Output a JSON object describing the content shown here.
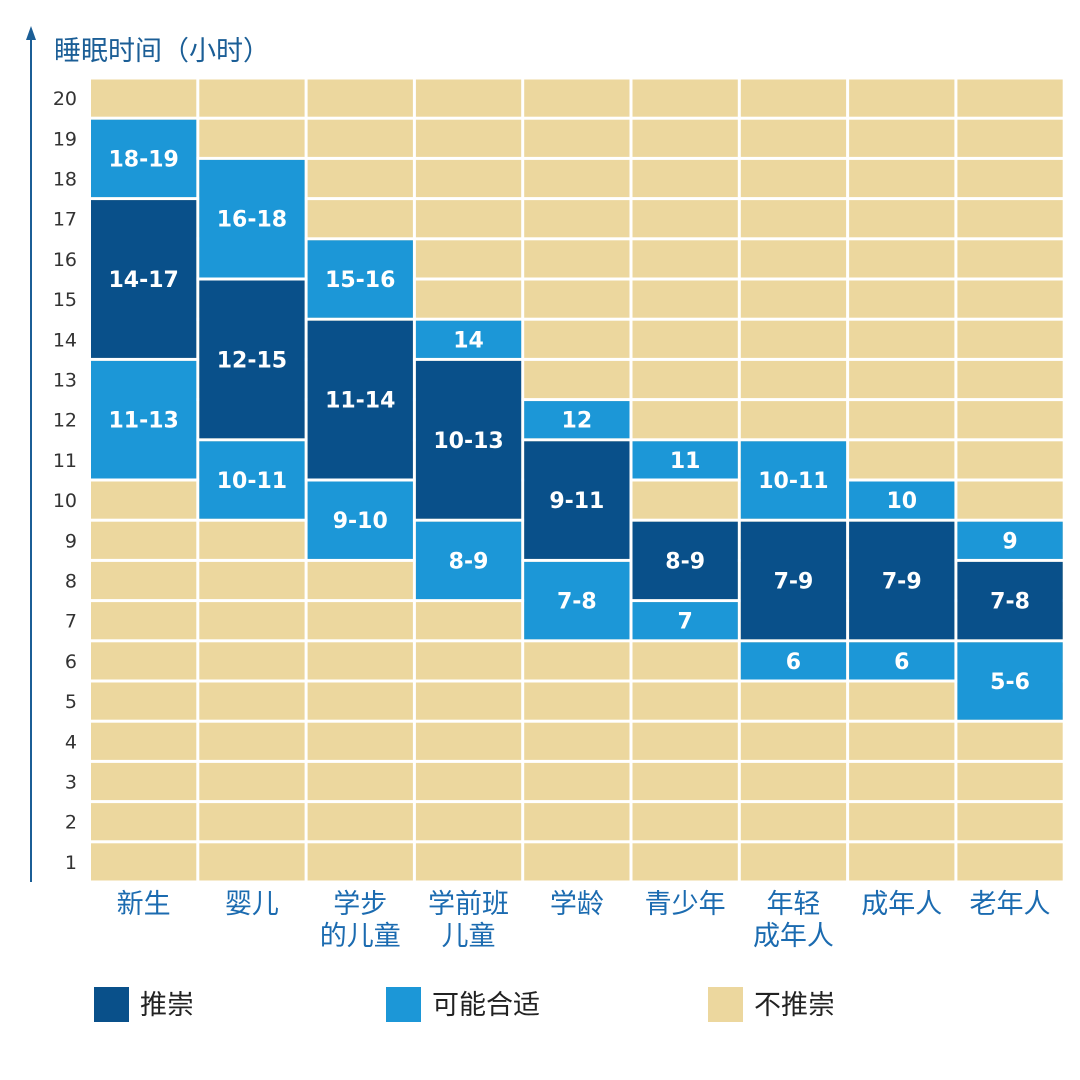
{
  "colors": {
    "recommended": "#09508a",
    "may_be_appropriate": "#1c97d7",
    "not_recommended": "#ecd79e",
    "axis": "#1b5e96",
    "category_text": "#1b6bb0"
  },
  "chart_data": {
    "type": "table",
    "ylabel": "睡眠时间（小时）",
    "ylim": [
      1,
      20
    ],
    "y_ticks": [
      20,
      19,
      18,
      17,
      16,
      15,
      14,
      13,
      12,
      11,
      10,
      9,
      8,
      7,
      6,
      5,
      4,
      3,
      2,
      1
    ],
    "categories": [
      {
        "label": [
          "新生"
        ],
        "segments": [
          {
            "range": [
              18,
              19
            ],
            "level": "may_be_appropriate",
            "label": "18-19"
          },
          {
            "range": [
              14,
              17
            ],
            "level": "recommended",
            "label": "14-17"
          },
          {
            "range": [
              11,
              13
            ],
            "level": "may_be_appropriate",
            "label": "11-13"
          }
        ]
      },
      {
        "label": [
          "婴儿"
        ],
        "segments": [
          {
            "range": [
              16,
              18
            ],
            "level": "may_be_appropriate",
            "label": "16-18"
          },
          {
            "range": [
              12,
              15
            ],
            "level": "recommended",
            "label": "12-15"
          },
          {
            "range": [
              10,
              11
            ],
            "level": "may_be_appropriate",
            "label": "10-11"
          }
        ]
      },
      {
        "label": [
          "学步",
          "的儿童"
        ],
        "segments": [
          {
            "range": [
              15,
              16
            ],
            "level": "may_be_appropriate",
            "label": "15-16"
          },
          {
            "range": [
              11,
              14
            ],
            "level": "recommended",
            "label": "11-14"
          },
          {
            "range": [
              9,
              10
            ],
            "level": "may_be_appropriate",
            "label": "9-10"
          }
        ]
      },
      {
        "label": [
          "学前班",
          "儿童"
        ],
        "segments": [
          {
            "range": [
              14,
              14
            ],
            "level": "may_be_appropriate",
            "label": "14"
          },
          {
            "range": [
              10,
              13
            ],
            "level": "recommended",
            "label": "10-13"
          },
          {
            "range": [
              8,
              9
            ],
            "level": "may_be_appropriate",
            "label": "8-9"
          }
        ]
      },
      {
        "label": [
          "学龄"
        ],
        "segments": [
          {
            "range": [
              12,
              12
            ],
            "level": "may_be_appropriate",
            "label": "12"
          },
          {
            "range": [
              9,
              11
            ],
            "level": "recommended",
            "label": "9-11"
          },
          {
            "range": [
              7,
              8
            ],
            "level": "may_be_appropriate",
            "label": "7-8"
          }
        ]
      },
      {
        "label": [
          "青少年"
        ],
        "segments": [
          {
            "range": [
              11,
              11
            ],
            "level": "may_be_appropriate",
            "label": "11"
          },
          {
            "range": [
              8,
              9
            ],
            "level": "recommended",
            "label": "8-9"
          },
          {
            "range": [
              7,
              7
            ],
            "level": "may_be_appropriate",
            "label": "7"
          }
        ]
      },
      {
        "label": [
          "年轻",
          "成年人"
        ],
        "segments": [
          {
            "range": [
              10,
              11
            ],
            "level": "may_be_appropriate",
            "label": "10-11"
          },
          {
            "range": [
              7,
              9
            ],
            "level": "recommended",
            "label": "7-9"
          },
          {
            "range": [
              6,
              6
            ],
            "level": "may_be_appropriate",
            "label": "6"
          }
        ]
      },
      {
        "label": [
          "成年人"
        ],
        "segments": [
          {
            "range": [
              10,
              10
            ],
            "level": "may_be_appropriate",
            "label": "10"
          },
          {
            "range": [
              7,
              9
            ],
            "level": "recommended",
            "label": "7-9"
          },
          {
            "range": [
              6,
              6
            ],
            "level": "may_be_appropriate",
            "label": "6"
          }
        ]
      },
      {
        "label": [
          "老年人"
        ],
        "segments": [
          {
            "range": [
              9,
              9
            ],
            "level": "may_be_appropriate",
            "label": "9"
          },
          {
            "range": [
              7,
              8
            ],
            "level": "recommended",
            "label": "7-8"
          },
          {
            "range": [
              5,
              6
            ],
            "level": "may_be_appropriate",
            "label": "5-6"
          }
        ]
      }
    ],
    "legend": [
      {
        "level": "recommended",
        "label": "推崇"
      },
      {
        "level": "may_be_appropriate",
        "label": "可能合适"
      },
      {
        "level": "not_recommended",
        "label": "不推崇"
      }
    ]
  }
}
